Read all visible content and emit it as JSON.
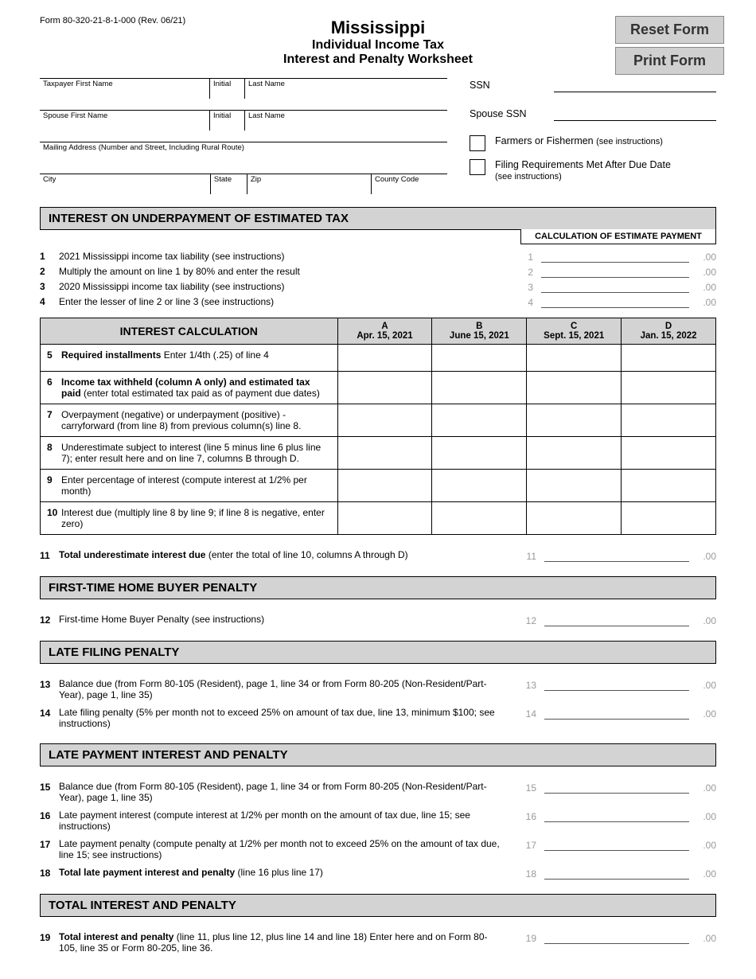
{
  "form_number": "Form 80-320-21-8-1-000 (Rev. 06/21)",
  "buttons": {
    "reset": "Reset Form",
    "print": "Print Form"
  },
  "title": {
    "state": "Mississippi",
    "line2": "Individual Income Tax",
    "line3": "Interest and Penalty Worksheet"
  },
  "labels": {
    "tp_first": "Taxpayer First Name",
    "initial": "Initial",
    "last": "Last Name",
    "sp_first": "Spouse First Name",
    "addr": "Mailing Address (Number and Street, Including Rural Route)",
    "city": "City",
    "state": "State",
    "zip": "Zip",
    "county": "County Code",
    "ssn": "SSN",
    "sp_ssn": "Spouse SSN",
    "farmers": "Farmers or Fishermen ",
    "farmers_sm": "(see instructions)",
    "filing_req": "Filing Requirements Met After Due Date",
    "filing_req_sm": "(see instructions)"
  },
  "sections": {
    "interest_hdr": "INTEREST ON UNDERPAYMENT OF ESTIMATED TAX",
    "calc_hdr": "CALCULATION OF ESTIMATE PAYMENT",
    "interest_calc": "INTEREST CALCULATION",
    "fthb": "FIRST-TIME HOME BUYER PENALTY",
    "late_filing": "LATE FILING PENALTY",
    "late_payment": "LATE PAYMENT INTEREST AND PENALTY",
    "total": "TOTAL INTEREST AND PENALTY"
  },
  "cents": ".00",
  "toplines": [
    {
      "n": "1",
      "t": "2021 Mississippi income tax liability (see instructions)",
      "rn": "1"
    },
    {
      "n": "2",
      "t": "Multiply the amount on line 1 by 80% and enter the result",
      "rn": "2"
    },
    {
      "n": "3",
      "t": "2020 Mississippi income tax liability (see instructions)",
      "rn": "3"
    },
    {
      "n": "4",
      "t": "Enter the lesser of line 2 or line 3 (see instructions)",
      "rn": "4"
    }
  ],
  "cols": {
    "A": {
      "l": "A",
      "d": "Apr. 15, 2021"
    },
    "B": {
      "l": "B",
      "d": "June 15, 2021"
    },
    "C": {
      "l": "C",
      "d": "Sept. 15, 2021"
    },
    "D": {
      "l": "D",
      "d": "Jan. 15, 2022"
    }
  },
  "calc_rows": [
    {
      "n": "5",
      "b": "Required installments",
      "t": "  Enter 1/4th (.25) of line 4"
    },
    {
      "n": "6",
      "b": "Income tax withheld (column A only) and estimated tax paid",
      "t": " (enter total estimated tax paid as of payment due dates)"
    },
    {
      "n": "7",
      "b": "",
      "t": "Overpayment (negative) or underpayment (positive) - carryforward (from line 8) from previous column(s) line 8."
    },
    {
      "n": "8",
      "b": "",
      "t": "Underestimate subject to interest (line 5 minus line 6 plus line 7); enter result here and on line 7, columns B through D."
    },
    {
      "n": "9",
      "b": "",
      "t": "Enter percentage of interest (compute interest at 1/2% per month)"
    },
    {
      "n": "10",
      "b": "",
      "t": "Interest due (multiply line 8 by line 9; if line 8 is negative, enter zero)"
    }
  ],
  "line11": {
    "n": "11",
    "b": "Total underestimate interest due",
    "t": " (enter the total of line 10, columns A through D)",
    "rn": "11"
  },
  "line12": {
    "n": "12",
    "t": "First-time Home Buyer Penalty (see instructions)",
    "rn": "12"
  },
  "line13": {
    "n": "13",
    "t": "Balance due (from Form 80-105 (Resident), page 1, line 34 or from Form 80-205 (Non-Resident/Part-Year), page 1, line 35)",
    "rn": "13"
  },
  "line14": {
    "n": "14",
    "t": "Late filing penalty (5% per month not to exceed 25% on amount of tax due, line 13, minimum $100; see instructions)",
    "rn": "14"
  },
  "line15": {
    "n": "15",
    "t": "Balance due (from Form 80-105 (Resident), page 1, line 34 or from Form 80-205 (Non-Resident/Part-Year), page 1, line 35)",
    "rn": "15"
  },
  "line16": {
    "n": "16",
    "t": "Late payment interest (compute interest at 1/2% per month on the amount of tax due, line 15; see instructions)",
    "rn": "16"
  },
  "line17": {
    "n": "17",
    "t": "Late payment penalty (compute penalty at 1/2% per month not to exceed 25% on the amount of tax due, line 15; see instructions)",
    "rn": "17"
  },
  "line18": {
    "n": "18",
    "b": "Total late payment interest and penalty",
    "t": " (line 16 plus line 17)",
    "rn": "18"
  },
  "line19": {
    "n": "19",
    "b": "Total interest and penalty",
    "t": " (line 11, plus line 12, plus line 14 and line 18) Enter here and on Form 80-105, line 35 or Form 80-205, line 36.",
    "rn": "19"
  }
}
